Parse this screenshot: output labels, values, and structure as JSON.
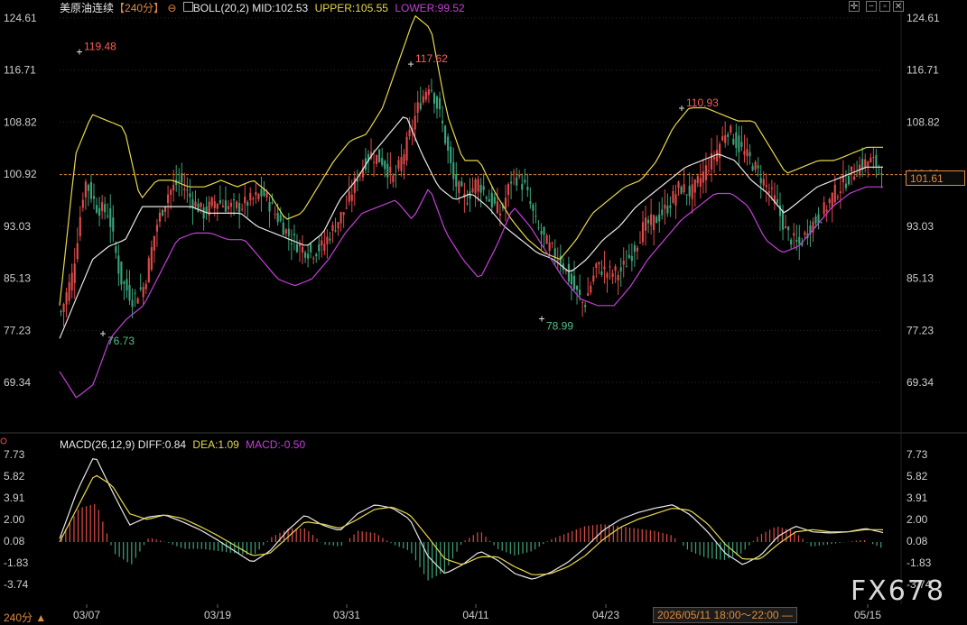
{
  "header": {
    "symbol": "美原油连续",
    "period_tag": "【240分】",
    "boll": {
      "name": "BOLL(20,2)",
      "mid_label": "MID:102.53",
      "upper_label": "UPPER:105.55",
      "lower_label": "LOWER:99.52"
    }
  },
  "macd_header": {
    "name": "MACD(26,12,9)",
    "diff_label": "DIFF:0.84",
    "dea_label": "DEA:1.09",
    "macd_label": "MACD:-0.50"
  },
  "colors": {
    "up": "#e04a4a",
    "down": "#3aa37a",
    "mid": "#e8e8e8",
    "upper": "#e6d84a",
    "lower": "#c43fd8",
    "price_line": "#e08a3c",
    "grid": "#2a2a2a",
    "axis_text": "#cfcfcf"
  },
  "price_axis": {
    "ticks": [
      "124.61",
      "116.71",
      "108.82",
      "100.92",
      "93.03",
      "85.13",
      "77.23",
      "69.34"
    ],
    "current": "101.61"
  },
  "macd_axis": {
    "ticks": [
      "7.73",
      "5.82",
      "3.91",
      "2.00",
      "0.08",
      "-1.83",
      "-3.74"
    ]
  },
  "x_axis": {
    "ticks": [
      "03/07",
      "03/19",
      "03/31",
      "04/11",
      "04/23",
      "05/15"
    ]
  },
  "period_selector": "240分 ▲",
  "crosshair_time": "2026/05/11 18:00～22:00 —",
  "watermark": "FX678",
  "icons": [
    "crosshair-icon",
    "minus-icon",
    "restore-icon",
    "close-icon"
  ],
  "chart_data": {
    "type": "candlestick",
    "annotations": [
      {
        "label": "119.48",
        "value": 119.48,
        "kind": "high"
      },
      {
        "label": "76.73",
        "value": 76.73,
        "kind": "low"
      },
      {
        "label": "117.62",
        "value": 117.62,
        "kind": "high"
      },
      {
        "label": "78.99",
        "value": 78.99,
        "kind": "low"
      },
      {
        "label": "110.93",
        "value": 110.93,
        "kind": "high"
      }
    ],
    "close_anchors": [
      80,
      86,
      100,
      96,
      95,
      85,
      82,
      84,
      93,
      98,
      100,
      97,
      95,
      97,
      96,
      96,
      97,
      98,
      95,
      92,
      90,
      89,
      90,
      93,
      96,
      101,
      104,
      103,
      100,
      105,
      111,
      115,
      109,
      100,
      97,
      100,
      97,
      95,
      101,
      99,
      93,
      90,
      88,
      84,
      81,
      87,
      86,
      86,
      89,
      93,
      94,
      96,
      99,
      98,
      101,
      104,
      108,
      105,
      103,
      100,
      97,
      92,
      90,
      93,
      95,
      98,
      100,
      102,
      103,
      102
    ],
    "upper_anchors": [
      81,
      104,
      110,
      109,
      108,
      97,
      100,
      100,
      99,
      99,
      100,
      99,
      100,
      98,
      94,
      95,
      99,
      103,
      106,
      107,
      111,
      118,
      125,
      123,
      110,
      103,
      103,
      98,
      94,
      91,
      89,
      88,
      91,
      95,
      97,
      99,
      100,
      103,
      108,
      111,
      111,
      110,
      109,
      109,
      105,
      101,
      102,
      103,
      103,
      104,
      105,
      105
    ],
    "mid_anchors": [
      76,
      82,
      88,
      90,
      91,
      96,
      96,
      96,
      96,
      95,
      95,
      95,
      93,
      92,
      91,
      90,
      92,
      97,
      100,
      104,
      107,
      110,
      104,
      99,
      97,
      98,
      96,
      93,
      91,
      89,
      88,
      86,
      88,
      91,
      93,
      96,
      98,
      100,
      102,
      103,
      104,
      103,
      100,
      98,
      95,
      97,
      99,
      100,
      101,
      102,
      102
    ],
    "lower_anchors": [
      71,
      67,
      69,
      76,
      79,
      81,
      86,
      91,
      92,
      92,
      91,
      91,
      88,
      85,
      84,
      85,
      88,
      92,
      95,
      96,
      97,
      94,
      99,
      92,
      88,
      85,
      90,
      96,
      93,
      89,
      85,
      82,
      81,
      81,
      84,
      88,
      91,
      94,
      96,
      98,
      98,
      96,
      91,
      89,
      90,
      93,
      96,
      98,
      99,
      99
    ],
    "diff_anchors": [
      0.3,
      4.5,
      7.7,
      4.5,
      1.5,
      2.2,
      2.4,
      1.8,
      1.1,
      0.2,
      -0.8,
      -1.8,
      -0.8,
      1.0,
      2.4,
      1.5,
      1.0,
      2.5,
      3.3,
      3.0,
      2.0,
      -1.2,
      -2.8,
      -2.0,
      -0.8,
      -1.6,
      -2.8,
      -3.3,
      -2.7,
      -1.8,
      -0.5,
      1.0,
      2.0,
      2.6,
      3.0,
      3.3,
      2.4,
      0.9,
      -1.0,
      -2.0,
      -1.2,
      0.5,
      1.4,
      0.9,
      0.8,
      0.9,
      1.2,
      0.84
    ],
    "dea_anchors": [
      0.0,
      3.0,
      6.0,
      5.0,
      2.5,
      2.0,
      2.4,
      2.1,
      1.4,
      0.6,
      -0.3,
      -1.2,
      -1.0,
      0.4,
      1.8,
      1.6,
      1.2,
      2.0,
      2.9,
      3.1,
      2.4,
      0.5,
      -1.5,
      -2.0,
      -1.3,
      -1.3,
      -2.2,
      -2.9,
      -2.8,
      -2.2,
      -1.2,
      0.2,
      1.3,
      2.0,
      2.5,
      3.0,
      2.8,
      1.6,
      -0.2,
      -1.5,
      -1.5,
      -0.2,
      0.9,
      1.1,
      0.9,
      0.9,
      1.1,
      1.09
    ],
    "price_range": [
      65,
      125
    ],
    "macd_range": [
      -5.5,
      8.6
    ]
  }
}
